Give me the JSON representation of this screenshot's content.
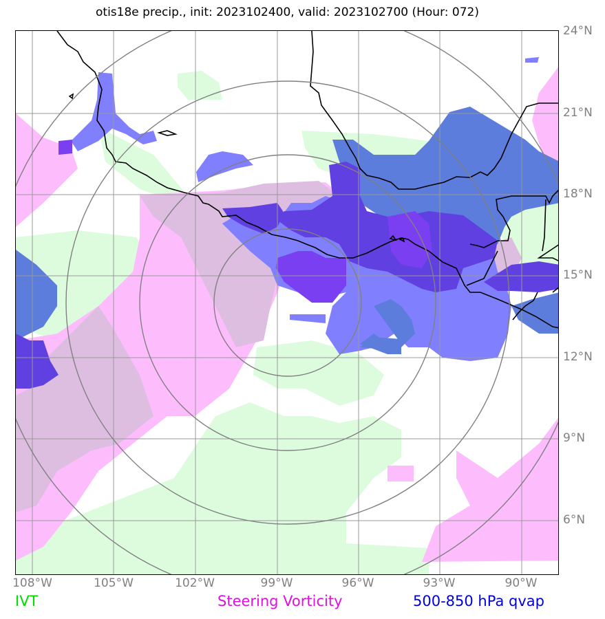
{
  "title": "otis18e precip., init: 2023102400, valid: 2023102700 (Hour: 072)",
  "map": {
    "lon_labels": [
      "108°W",
      "105°W",
      "102°W",
      "99°W",
      "96°W",
      "93°W",
      "90°W"
    ],
    "lat_labels": [
      "24°N",
      "21°N",
      "18°N",
      "15°N",
      "12°N",
      "9°N",
      "6°N"
    ],
    "grid_color": "#999999",
    "range_ring_color": "#808080",
    "coastline_color": "#000000",
    "extent": {
      "lon_min": -108.6,
      "lon_max": -88.6,
      "lat_min": 3.9,
      "lat_max": 24.0
    },
    "storm_center": {
      "lon": -98.7,
      "lat": 14.2
    }
  },
  "layers": {
    "ivt": {
      "color": "#ddfcde"
    },
    "steering_vorticity": {
      "color": "#fdbdfd"
    },
    "overlap": {
      "color": "#ddbde0"
    },
    "qvap_light": {
      "color": "#8080ff"
    },
    "qvap_medium": {
      "color": "#5c7ddc"
    },
    "qvap_dark": {
      "color": "#6040e0"
    },
    "qvap_violet": {
      "color": "#7b3ff2"
    }
  },
  "legend": {
    "ivt": {
      "label": "IVT",
      "color": "#00dd00"
    },
    "steering": {
      "label": "Steering Vorticity",
      "color": "#e010e0"
    },
    "qvap": {
      "label": "500-850 hPa qvap",
      "color": "#0000e0"
    }
  }
}
